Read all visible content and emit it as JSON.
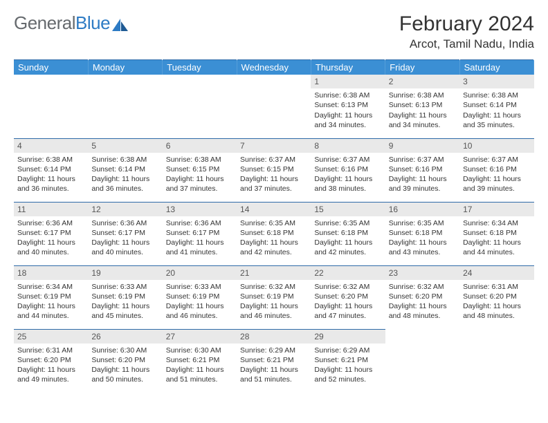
{
  "brand": {
    "part1": "General",
    "part2": "Blue"
  },
  "title": "February 2024",
  "location": "Arcot, Tamil Nadu, India",
  "header_bg": "#3b8fd4",
  "rule_color": "#2d6aa8",
  "daynum_bg": "#e9e9e9",
  "weekdays": [
    "Sunday",
    "Monday",
    "Tuesday",
    "Wednesday",
    "Thursday",
    "Friday",
    "Saturday"
  ],
  "weeks": [
    [
      null,
      null,
      null,
      null,
      {
        "n": "1",
        "sr": "6:38 AM",
        "ss": "6:13 PM",
        "dl": "11 hours and 34 minutes."
      },
      {
        "n": "2",
        "sr": "6:38 AM",
        "ss": "6:13 PM",
        "dl": "11 hours and 34 minutes."
      },
      {
        "n": "3",
        "sr": "6:38 AM",
        "ss": "6:14 PM",
        "dl": "11 hours and 35 minutes."
      }
    ],
    [
      {
        "n": "4",
        "sr": "6:38 AM",
        "ss": "6:14 PM",
        "dl": "11 hours and 36 minutes."
      },
      {
        "n": "5",
        "sr": "6:38 AM",
        "ss": "6:14 PM",
        "dl": "11 hours and 36 minutes."
      },
      {
        "n": "6",
        "sr": "6:38 AM",
        "ss": "6:15 PM",
        "dl": "11 hours and 37 minutes."
      },
      {
        "n": "7",
        "sr": "6:37 AM",
        "ss": "6:15 PM",
        "dl": "11 hours and 37 minutes."
      },
      {
        "n": "8",
        "sr": "6:37 AM",
        "ss": "6:16 PM",
        "dl": "11 hours and 38 minutes."
      },
      {
        "n": "9",
        "sr": "6:37 AM",
        "ss": "6:16 PM",
        "dl": "11 hours and 39 minutes."
      },
      {
        "n": "10",
        "sr": "6:37 AM",
        "ss": "6:16 PM",
        "dl": "11 hours and 39 minutes."
      }
    ],
    [
      {
        "n": "11",
        "sr": "6:36 AM",
        "ss": "6:17 PM",
        "dl": "11 hours and 40 minutes."
      },
      {
        "n": "12",
        "sr": "6:36 AM",
        "ss": "6:17 PM",
        "dl": "11 hours and 40 minutes."
      },
      {
        "n": "13",
        "sr": "6:36 AM",
        "ss": "6:17 PM",
        "dl": "11 hours and 41 minutes."
      },
      {
        "n": "14",
        "sr": "6:35 AM",
        "ss": "6:18 PM",
        "dl": "11 hours and 42 minutes."
      },
      {
        "n": "15",
        "sr": "6:35 AM",
        "ss": "6:18 PM",
        "dl": "11 hours and 42 minutes."
      },
      {
        "n": "16",
        "sr": "6:35 AM",
        "ss": "6:18 PM",
        "dl": "11 hours and 43 minutes."
      },
      {
        "n": "17",
        "sr": "6:34 AM",
        "ss": "6:18 PM",
        "dl": "11 hours and 44 minutes."
      }
    ],
    [
      {
        "n": "18",
        "sr": "6:34 AM",
        "ss": "6:19 PM",
        "dl": "11 hours and 44 minutes."
      },
      {
        "n": "19",
        "sr": "6:33 AM",
        "ss": "6:19 PM",
        "dl": "11 hours and 45 minutes."
      },
      {
        "n": "20",
        "sr": "6:33 AM",
        "ss": "6:19 PM",
        "dl": "11 hours and 46 minutes."
      },
      {
        "n": "21",
        "sr": "6:32 AM",
        "ss": "6:19 PM",
        "dl": "11 hours and 46 minutes."
      },
      {
        "n": "22",
        "sr": "6:32 AM",
        "ss": "6:20 PM",
        "dl": "11 hours and 47 minutes."
      },
      {
        "n": "23",
        "sr": "6:32 AM",
        "ss": "6:20 PM",
        "dl": "11 hours and 48 minutes."
      },
      {
        "n": "24",
        "sr": "6:31 AM",
        "ss": "6:20 PM",
        "dl": "11 hours and 48 minutes."
      }
    ],
    [
      {
        "n": "25",
        "sr": "6:31 AM",
        "ss": "6:20 PM",
        "dl": "11 hours and 49 minutes."
      },
      {
        "n": "26",
        "sr": "6:30 AM",
        "ss": "6:20 PM",
        "dl": "11 hours and 50 minutes."
      },
      {
        "n": "27",
        "sr": "6:30 AM",
        "ss": "6:21 PM",
        "dl": "11 hours and 51 minutes."
      },
      {
        "n": "28",
        "sr": "6:29 AM",
        "ss": "6:21 PM",
        "dl": "11 hours and 51 minutes."
      },
      {
        "n": "29",
        "sr": "6:29 AM",
        "ss": "6:21 PM",
        "dl": "11 hours and 52 minutes."
      },
      null,
      null
    ]
  ]
}
